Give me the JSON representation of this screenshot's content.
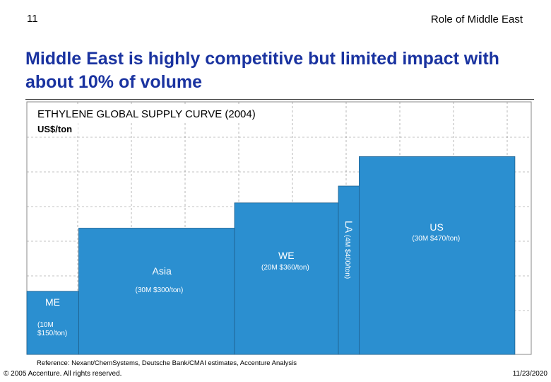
{
  "header": {
    "page_number": "11",
    "section_title": "Role of Middle East",
    "headline": "Middle East is highly competitive but limited impact with about 10% of volume"
  },
  "colors": {
    "bar": "#2b8fd0",
    "bar_border": "#1e5f8c",
    "grid": "#888888",
    "headline": "#1a33a0"
  },
  "chart_data": {
    "type": "bar",
    "title": "ETHYLENE GLOBAL SUPPLY CURVE (2004)",
    "ylabel": "US$/ton",
    "xlabel": "",
    "ylim": [
      0,
      600
    ],
    "grid": true,
    "segments": [
      {
        "region": "ME",
        "volume": 10,
        "price": 150,
        "label": "ME",
        "detail": "(10M $150/ton)"
      },
      {
        "region": "Asia",
        "volume": 30,
        "price": 300,
        "label": "Asia",
        "detail": "(30M $300/ton)"
      },
      {
        "region": "WE",
        "volume": 20,
        "price": 360,
        "label": "WE",
        "detail": "(20M $360/ton)"
      },
      {
        "region": "LA",
        "volume": 4,
        "price": 400,
        "label": "LA",
        "detail": "(4M $400/ton)"
      },
      {
        "region": "US",
        "volume": 30,
        "price": 470,
        "label": "US",
        "detail": "(30M $470/ton)"
      }
    ]
  },
  "reference": "Reference: Nexant/ChemSystems, Deutsche Bank/CMAI estimates, Accenture Analysis",
  "footer": {
    "copyright": "© 2005 Accenture. All rights reserved.",
    "date": "11/23/2020"
  }
}
